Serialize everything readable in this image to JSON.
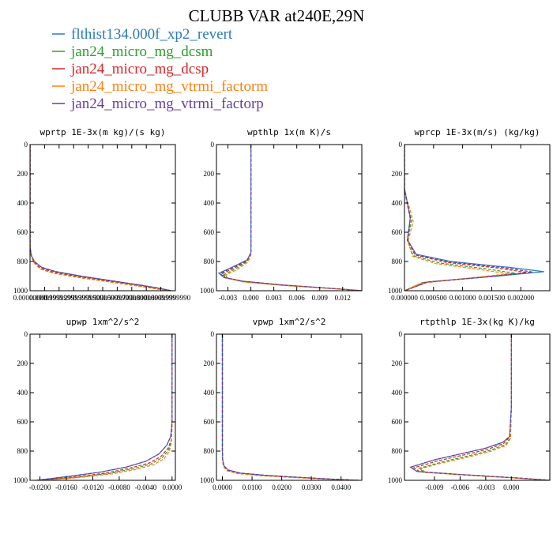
{
  "title": "CLUBB VAR at240E,29N",
  "legend": [
    {
      "label": "flthist134.000f_xp2_revert",
      "color": "#2b7bb9"
    },
    {
      "label": "jan24_micro_mg_dcsm",
      "color": "#2ca02c"
    },
    {
      "label": "jan24_micro_mg_dcsp",
      "color": "#d62728"
    },
    {
      "label": "jan24_micro_mg_vtrmi_factorm",
      "color": "#ff7f0e"
    },
    {
      "label": "jan24_micro_mg_vtrmi_factorp",
      "color": "#6a3d9a"
    }
  ],
  "chart_data": [
    {
      "type": "line",
      "title": "wprtp  1E-3x(m kg)/(s kg)",
      "xlim": [
        0,
        1
      ],
      "ylim": [
        1000,
        0
      ],
      "xticks": [
        0,
        0.1,
        0.2,
        0.3,
        0.4,
        0.5,
        0.6,
        0.7,
        0.8,
        0.9,
        1.0
      ],
      "xtick_labels": [
        "0.00000000",
        "0.0999999",
        "0.1999999",
        "0.2999999",
        "0.3999999",
        "0.5000000",
        "0.5999999",
        "0.7000000",
        "0.8000000",
        "0.8999999",
        "0.9999990"
      ],
      "yticks": [
        0,
        200,
        400,
        600,
        800,
        1000
      ],
      "series": [
        {
          "color": "#2b7bb9",
          "dash": "solid",
          "x": [
            0,
            0,
            0.01,
            0.03,
            0.08,
            0.18,
            0.35,
            0.55,
            0.75,
            0.9,
            0.97
          ],
          "y": [
            0,
            700,
            760,
            800,
            840,
            870,
            900,
            930,
            960,
            985,
            1000
          ]
        },
        {
          "color": "#2ca02c",
          "dash": "dashed",
          "x": [
            0,
            0,
            0.01,
            0.03,
            0.07,
            0.16,
            0.33,
            0.53,
            0.73,
            0.88,
            0.96
          ],
          "y": [
            0,
            710,
            770,
            810,
            850,
            878,
            906,
            935,
            963,
            987,
            1000
          ]
        },
        {
          "color": "#d62728",
          "dash": "dashed",
          "x": [
            0,
            0,
            0.01,
            0.03,
            0.07,
            0.17,
            0.34,
            0.54,
            0.74,
            0.89,
            0.97
          ],
          "y": [
            0,
            705,
            765,
            805,
            845,
            874,
            903,
            933,
            962,
            986,
            1000
          ]
        },
        {
          "color": "#ff7f0e",
          "dash": "dashed",
          "x": [
            0,
            0,
            0.01,
            0.03,
            0.07,
            0.16,
            0.32,
            0.52,
            0.72,
            0.87,
            0.95
          ],
          "y": [
            0,
            712,
            772,
            812,
            852,
            880,
            908,
            937,
            965,
            988,
            1000
          ]
        },
        {
          "color": "#6a3d9a",
          "dash": "dashed",
          "x": [
            0,
            0,
            0.01,
            0.03,
            0.08,
            0.18,
            0.35,
            0.55,
            0.75,
            0.9,
            0.97
          ],
          "y": [
            0,
            700,
            760,
            800,
            840,
            870,
            900,
            930,
            960,
            985,
            1000
          ]
        }
      ]
    },
    {
      "type": "line",
      "title": "wpthlp  1x(m K)/s",
      "xlim": [
        -0.0045,
        0.0145
      ],
      "ylim": [
        1000,
        0
      ],
      "xticks": [
        -0.003,
        0,
        0.003,
        0.006,
        0.009,
        0.012
      ],
      "xtick_labels": [
        "-0.003",
        "0.000",
        "0.003",
        "0.006",
        "0.009",
        "0.012"
      ],
      "yticks": [
        0,
        200,
        400,
        600,
        800,
        1000
      ],
      "series": [
        {
          "color": "#2b7bb9",
          "dash": "solid",
          "x": [
            0,
            0,
            0,
            -0.0005,
            -0.0025,
            -0.0042,
            -0.0035,
            -0.001,
            0.004,
            0.012,
            0.0145
          ],
          "y": [
            0,
            500,
            740,
            790,
            840,
            880,
            910,
            935,
            960,
            990,
            1000
          ]
        },
        {
          "color": "#2ca02c",
          "dash": "dashed",
          "x": [
            0,
            0,
            0,
            -0.0005,
            -0.002,
            -0.0035,
            -0.003,
            -0.001,
            0.004,
            0.012,
            0.0145
          ],
          "y": [
            0,
            500,
            750,
            800,
            850,
            890,
            915,
            938,
            962,
            990,
            1000
          ]
        },
        {
          "color": "#d62728",
          "dash": "dashed",
          "x": [
            0,
            0,
            0,
            -0.0005,
            -0.0022,
            -0.0038,
            -0.0032,
            -0.001,
            0.004,
            0.012,
            0.0145
          ],
          "y": [
            0,
            500,
            745,
            795,
            845,
            885,
            912,
            936,
            961,
            990,
            1000
          ]
        },
        {
          "color": "#ff7f0e",
          "dash": "dashed",
          "x": [
            0,
            0,
            0,
            -0.0004,
            -0.0018,
            -0.0033,
            -0.0029,
            -0.001,
            0.004,
            0.012,
            0.0145
          ],
          "y": [
            0,
            500,
            755,
            805,
            855,
            893,
            917,
            940,
            963,
            990,
            1000
          ]
        },
        {
          "color": "#6a3d9a",
          "dash": "dashed",
          "x": [
            0,
            0,
            0,
            -0.0005,
            -0.0024,
            -0.004,
            -0.0034,
            -0.001,
            0.004,
            0.012,
            0.0145
          ],
          "y": [
            0,
            500,
            742,
            792,
            842,
            882,
            911,
            935,
            960,
            990,
            1000
          ]
        }
      ]
    },
    {
      "type": "line",
      "title": "wprcp  1E-3x(m/s) (kg/kg)",
      "xlim": [
        0,
        0.0025
      ],
      "ylim": [
        1000,
        0
      ],
      "xticks": [
        0,
        0.0005,
        0.001,
        0.0015,
        0.002
      ],
      "xtick_labels": [
        "0.000000",
        "0.000500",
        "0.001000",
        "0.001500",
        "0.002000"
      ],
      "yticks": [
        0,
        200,
        400,
        600,
        800,
        1000
      ],
      "series": [
        {
          "color": "#2b7bb9",
          "dash": "solid",
          "x": [
            0,
            0,
            5e-05,
            0.0001,
            5e-05,
            0.0002,
            0.0008,
            0.0018,
            0.0024,
            0.0016,
            0.0004,
            0
          ],
          "y": [
            0,
            300,
            400,
            500,
            650,
            750,
            800,
            840,
            870,
            900,
            940,
            1000
          ]
        },
        {
          "color": "#2ca02c",
          "dash": "dashed",
          "x": [
            0,
            0,
            6e-05,
            0.00012,
            5e-05,
            0.00015,
            0.0006,
            0.0014,
            0.0019,
            0.0012,
            0.0003,
            0
          ],
          "y": [
            0,
            320,
            420,
            520,
            660,
            760,
            810,
            850,
            880,
            910,
            945,
            1000
          ]
        },
        {
          "color": "#d62728",
          "dash": "dashed",
          "x": [
            0,
            0,
            5e-05,
            0.0001,
            5e-05,
            0.00018,
            0.0007,
            0.0016,
            0.0021,
            0.0014,
            0.00035,
            0
          ],
          "y": [
            0,
            310,
            410,
            510,
            655,
            755,
            805,
            845,
            875,
            905,
            942,
            1000
          ]
        },
        {
          "color": "#ff7f0e",
          "dash": "dashed",
          "x": [
            0,
            0,
            8e-05,
            0.00015,
            6e-05,
            0.00014,
            0.00055,
            0.0013,
            0.0018,
            0.0011,
            0.0003,
            0
          ],
          "y": [
            0,
            330,
            425,
            525,
            665,
            765,
            815,
            855,
            885,
            915,
            948,
            1000
          ]
        },
        {
          "color": "#6a3d9a",
          "dash": "dashed",
          "x": [
            0,
            0,
            5e-05,
            0.0001,
            5e-05,
            0.0002,
            0.00075,
            0.0017,
            0.0022,
            0.0015,
            0.0004,
            0
          ],
          "y": [
            0,
            300,
            405,
            505,
            652,
            752,
            802,
            842,
            872,
            902,
            941,
            1000
          ]
        }
      ]
    },
    {
      "type": "line",
      "title": "upwp  1xm^2/s^2",
      "xlim": [
        -0.0215,
        0.0005
      ],
      "ylim": [
        1000,
        0
      ],
      "xticks": [
        -0.02,
        -0.016,
        -0.012,
        -0.008,
        -0.004,
        0
      ],
      "xtick_labels": [
        "-0.0200",
        "-0.0160",
        "-0.0120",
        "-0.0080",
        "-0.0040",
        "0.0000"
      ],
      "yticks": [
        0,
        200,
        400,
        600,
        800,
        1000
      ],
      "series": [
        {
          "color": "#2b7bb9",
          "dash": "solid",
          "x": [
            0,
            0,
            -0.0002,
            -0.0008,
            -0.002,
            -0.004,
            -0.007,
            -0.011,
            -0.016,
            -0.0205
          ],
          "y": [
            0,
            600,
            700,
            760,
            820,
            870,
            910,
            945,
            975,
            1000
          ]
        },
        {
          "color": "#2ca02c",
          "dash": "dashed",
          "x": [
            0,
            0,
            -0.0001,
            -0.0005,
            -0.0015,
            -0.0032,
            -0.006,
            -0.0095,
            -0.0145,
            -0.02
          ],
          "y": [
            0,
            620,
            730,
            790,
            845,
            888,
            922,
            953,
            980,
            1000
          ]
        },
        {
          "color": "#d62728",
          "dash": "dashed",
          "x": [
            0,
            0,
            -0.0001,
            -0.0006,
            -0.0017,
            -0.0035,
            -0.0065,
            -0.01,
            -0.015,
            -0.0202
          ],
          "y": [
            0,
            610,
            720,
            780,
            838,
            882,
            918,
            950,
            978,
            1000
          ]
        },
        {
          "color": "#ff7f0e",
          "dash": "dashed",
          "x": [
            0,
            0,
            -0.0001,
            -0.0004,
            -0.0012,
            -0.0028,
            -0.0055,
            -0.009,
            -0.014,
            -0.0198
          ],
          "y": [
            0,
            630,
            740,
            800,
            852,
            893,
            926,
            955,
            981,
            1000
          ]
        },
        {
          "color": "#6a3d9a",
          "dash": "dashed",
          "x": [
            0,
            0,
            -0.0002,
            -0.0008,
            -0.002,
            -0.004,
            -0.007,
            -0.011,
            -0.016,
            -0.0205
          ],
          "y": [
            0,
            600,
            700,
            760,
            820,
            870,
            910,
            945,
            975,
            1000
          ]
        }
      ]
    },
    {
      "type": "line",
      "title": "vpwp  1xm^2/s^2",
      "xlim": [
        -0.002,
        0.047
      ],
      "ylim": [
        1000,
        0
      ],
      "xticks": [
        0,
        0.01,
        0.02,
        0.03,
        0.04
      ],
      "xtick_labels": [
        "0.0000",
        "0.0100",
        "0.0200",
        "0.0300",
        "0.0400"
      ],
      "yticks": [
        0,
        200,
        400,
        600,
        800,
        1000
      ],
      "series": [
        {
          "color": "#2b7bb9",
          "dash": "solid",
          "x": [
            0,
            0,
            0,
            0.0001,
            0.0005,
            0.002,
            0.006,
            0.014,
            0.026,
            0.038,
            0.046
          ],
          "y": [
            0,
            400,
            800,
            860,
            900,
            930,
            950,
            965,
            980,
            993,
            1000
          ]
        },
        {
          "color": "#2ca02c",
          "dash": "dashed",
          "x": [
            0,
            0,
            0,
            0.0001,
            0.0004,
            0.0018,
            0.0055,
            0.013,
            0.025,
            0.037,
            0.045
          ],
          "y": [
            0,
            400,
            810,
            870,
            906,
            934,
            953,
            967,
            981,
            993,
            1000
          ]
        },
        {
          "color": "#d62728",
          "dash": "dashed",
          "x": [
            0,
            0,
            0,
            0.0001,
            0.0005,
            0.0019,
            0.0058,
            0.0135,
            0.0255,
            0.0375,
            0.0455
          ],
          "y": [
            0,
            400,
            805,
            865,
            903,
            932,
            951,
            966,
            980,
            993,
            1000
          ]
        },
        {
          "color": "#ff7f0e",
          "dash": "dashed",
          "x": [
            0,
            0,
            0,
            0.0001,
            0.0004,
            0.0017,
            0.0052,
            0.0125,
            0.0245,
            0.0365,
            0.0445
          ],
          "y": [
            0,
            400,
            815,
            873,
            908,
            936,
            954,
            968,
            981,
            993,
            1000
          ]
        },
        {
          "color": "#6a3d9a",
          "dash": "dashed",
          "x": [
            0,
            0,
            0,
            0.0001,
            0.0005,
            0.002,
            0.006,
            0.014,
            0.026,
            0.038,
            0.046
          ],
          "y": [
            0,
            400,
            800,
            860,
            900,
            930,
            950,
            965,
            980,
            993,
            1000
          ]
        }
      ]
    },
    {
      "type": "line",
      "title": "rtpthlp  1E-3x(kg K)/kg",
      "xlim": [
        -0.0125,
        0.0045
      ],
      "ylim": [
        1000,
        0
      ],
      "xticks": [
        -0.009,
        -0.006,
        -0.003,
        0
      ],
      "xtick_labels": [
        "-0.009",
        "-0.006",
        "-0.003",
        "0.000"
      ],
      "yticks": [
        0,
        200,
        400,
        600,
        800,
        1000
      ],
      "series": [
        {
          "color": "#2b7bb9",
          "dash": "solid",
          "x": [
            0,
            0,
            -0.0002,
            -0.001,
            -0.003,
            -0.006,
            -0.009,
            -0.0118,
            -0.011,
            -0.006,
            0.001,
            0.0045
          ],
          "y": [
            0,
            500,
            700,
            740,
            780,
            820,
            860,
            910,
            940,
            960,
            985,
            1000
          ]
        },
        {
          "color": "#2ca02c",
          "dash": "dashed",
          "x": [
            0,
            0,
            -0.0001,
            -0.0007,
            -0.0025,
            -0.0052,
            -0.008,
            -0.0108,
            -0.0102,
            -0.0055,
            0.001,
            0.0045
          ],
          "y": [
            0,
            500,
            710,
            755,
            795,
            835,
            873,
            918,
            945,
            963,
            986,
            1000
          ]
        },
        {
          "color": "#d62728",
          "dash": "dashed",
          "x": [
            0,
            0,
            -0.0002,
            -0.0009,
            -0.0028,
            -0.0057,
            -0.0086,
            -0.0114,
            -0.0107,
            -0.0058,
            0.001,
            0.0045
          ],
          "y": [
            0,
            500,
            705,
            748,
            788,
            828,
            867,
            914,
            942,
            961,
            985,
            1000
          ]
        },
        {
          "color": "#ff7f0e",
          "dash": "dashed",
          "x": [
            0,
            0,
            -0.0001,
            -0.0006,
            -0.0023,
            -0.005,
            -0.0078,
            -0.0106,
            -0.01,
            -0.0054,
            0.001,
            0.0045
          ],
          "y": [
            0,
            500,
            715,
            760,
            800,
            840,
            877,
            920,
            946,
            964,
            986,
            1000
          ]
        },
        {
          "color": "#6a3d9a",
          "dash": "dashed",
          "x": [
            0,
            0,
            -0.0002,
            -0.001,
            -0.003,
            -0.006,
            -0.009,
            -0.0118,
            -0.011,
            -0.006,
            0.001,
            0.0045
          ],
          "y": [
            0,
            500,
            700,
            740,
            780,
            820,
            860,
            910,
            940,
            960,
            985,
            1000
          ]
        }
      ]
    }
  ]
}
